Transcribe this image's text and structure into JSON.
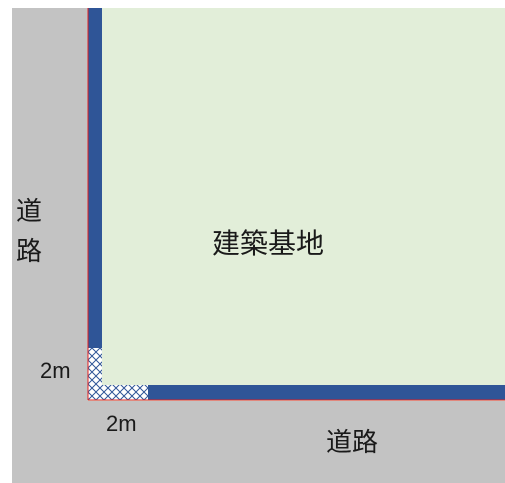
{
  "site_label": "建築基地",
  "road_left_chars": [
    "道",
    "路"
  ],
  "road_bottom_label": "道路",
  "corner_dim_vertical": "2m",
  "corner_dim_horizontal": "2m",
  "colors": {
    "road": "#c3c3c3",
    "site": "#e2eed9",
    "setback": "#2f5597",
    "boundary": "#e02020",
    "corner_hatch": "#2f5597"
  }
}
